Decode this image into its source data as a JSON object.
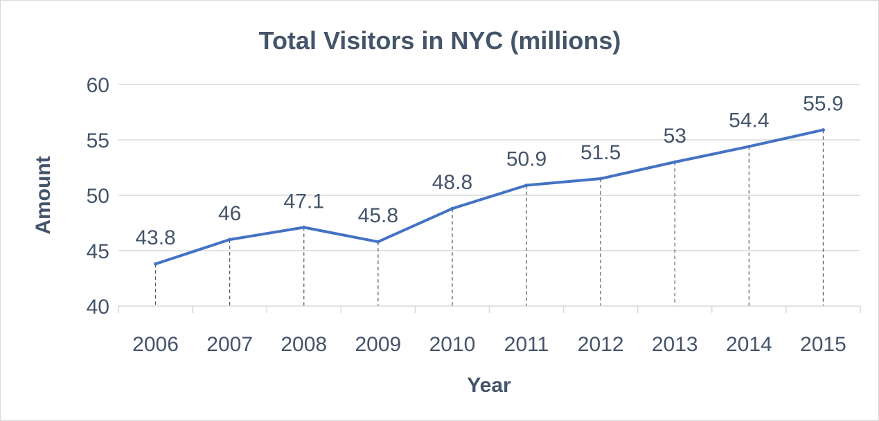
{
  "chart_data": {
    "type": "line",
    "title": "Total Visitors in NYC (millions)",
    "xlabel": "Year",
    "ylabel": "Amount",
    "categories": [
      "2006",
      "2007",
      "2008",
      "2009",
      "2010",
      "2011",
      "2012",
      "2013",
      "2014",
      "2015"
    ],
    "series": [
      {
        "values": [
          43.8,
          46,
          47.1,
          45.8,
          48.8,
          50.9,
          51.5,
          53,
          54.4,
          55.9
        ]
      }
    ],
    "data_labels": [
      "43.8",
      "46",
      "47.1",
      "45.8",
      "48.8",
      "50.9",
      "51.5",
      "53",
      "54.4",
      "55.9"
    ],
    "yticks": [
      "40",
      "45",
      "50",
      "55",
      "60"
    ],
    "ylim": [
      40,
      60
    ],
    "grid": true,
    "drop_lines": true,
    "legend": "none",
    "colors": {
      "line": "#4472c4",
      "text": "#44546a",
      "grid": "#d9d9d9",
      "drop_line": "#44546a"
    }
  }
}
